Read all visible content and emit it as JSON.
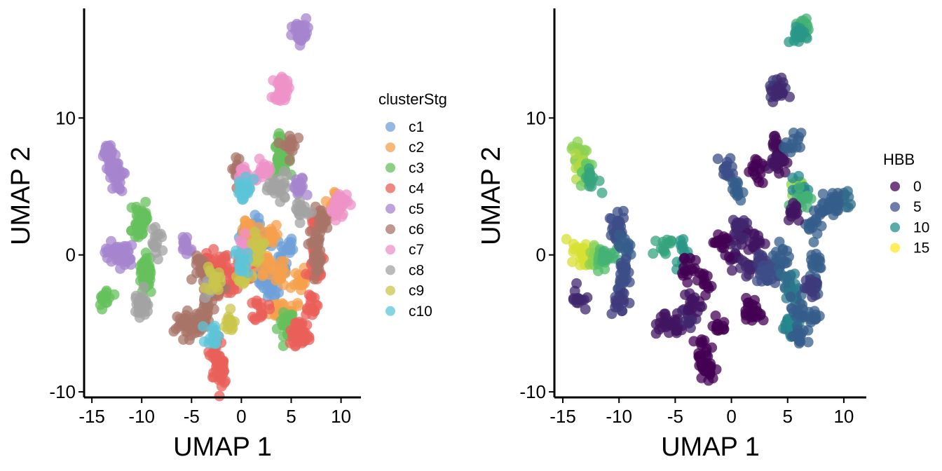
{
  "chart_data": [
    {
      "type": "scatter",
      "xlabel": "UMAP 1",
      "ylabel": "UMAP 2",
      "xlim": [
        -15.5,
        12
      ],
      "ylim": [
        -10.2,
        18
      ],
      "xticks": [
        -15,
        -10,
        -5,
        0,
        5,
        10
      ],
      "yticks": [
        -10,
        0,
        10
      ],
      "legend_title": "clusterStg",
      "legend_position": "right",
      "series": [
        {
          "name": "c1",
          "color": "#6fa0d8",
          "values": [
            [
              0.5,
              1.5
            ],
            [
              1.5,
              2.0
            ],
            [
              2.5,
              1.0
            ],
            [
              2.0,
              -1.5
            ],
            [
              3.0,
              -2.5
            ],
            [
              4.0,
              -1.0
            ],
            [
              1.0,
              -1.0
            ],
            [
              4.5,
              0.5
            ]
          ]
        },
        {
          "name": "c2",
          "color": "#f5a04c",
          "values": [
            [
              0.5,
              2.0
            ],
            [
              1.5,
              1.0
            ],
            [
              3.0,
              1.5
            ],
            [
              2.5,
              -0.5
            ],
            [
              4.0,
              -1.5
            ],
            [
              3.5,
              -4.0
            ],
            [
              5.0,
              -4.5
            ],
            [
              9.5,
              3.8
            ],
            [
              6.0,
              -2.0
            ],
            [
              1.0,
              -0.5
            ]
          ]
        },
        {
          "name": "c3",
          "color": "#66c05c",
          "values": [
            [
              4.0,
              8.0
            ],
            [
              4.2,
              7.0
            ],
            [
              3.8,
              6.5
            ],
            [
              -10.0,
              2.5
            ],
            [
              -10.3,
              1.8
            ],
            [
              -9.5,
              -0.8
            ],
            [
              -9.8,
              -1.5
            ],
            [
              -9.6,
              -2.0
            ],
            [
              4.5,
              -5.0
            ],
            [
              5.0,
              -5.5
            ],
            [
              -13.6,
              -3.2
            ],
            [
              -10.0,
              3.0
            ]
          ]
        },
        {
          "name": "c4",
          "color": "#ea6059",
          "values": [
            [
              -2.5,
              -7.0
            ],
            [
              -2.3,
              -8.0
            ],
            [
              -2.0,
              -8.5
            ],
            [
              0.0,
              -1.0
            ],
            [
              -1.0,
              -2.0
            ],
            [
              -3.5,
              -0.5
            ],
            [
              -2.5,
              -2.5
            ],
            [
              6.0,
              -5.5
            ],
            [
              6.2,
              -6.0
            ],
            [
              5.5,
              -6.0
            ],
            [
              7.5,
              0.0
            ],
            [
              7.5,
              2.5
            ],
            [
              7.5,
              -1.5
            ],
            [
              -2.0,
              -0.5
            ],
            [
              2.0,
              -4.0
            ],
            [
              7.0,
              -3.5
            ]
          ]
        },
        {
          "name": "c5",
          "color": "#a584ce",
          "values": [
            [
              -13.5,
              7.5
            ],
            [
              -13.2,
              6.5
            ],
            [
              -12.8,
              6.0
            ],
            [
              -12.5,
              5.5
            ],
            [
              -13.0,
              0.2
            ],
            [
              -12.0,
              0.0
            ],
            [
              -11.5,
              -0.2
            ],
            [
              6.2,
              16.3
            ],
            [
              5.8,
              16.0
            ],
            [
              5.8,
              4.8
            ],
            [
              -5.5,
              0.8
            ]
          ]
        },
        {
          "name": "c6",
          "color": "#a87468",
          "values": [
            [
              -6.0,
              -5.0
            ],
            [
              -5.0,
              -5.2
            ],
            [
              -3.8,
              -4.5
            ],
            [
              -3.5,
              -3.5
            ],
            [
              4.8,
              8.0
            ],
            [
              -0.3,
              6.3
            ],
            [
              8.0,
              2.5
            ],
            [
              7.5,
              1.0
            ],
            [
              7.8,
              -0.5
            ],
            [
              -4.0,
              -1.0
            ],
            [
              -2.5,
              -2.0
            ]
          ]
        },
        {
          "name": "c7",
          "color": "#ee91c8",
          "values": [
            [
              3.8,
              12.3
            ],
            [
              4.2,
              12.0
            ],
            [
              0.5,
              0.5
            ],
            [
              1.0,
              0.3
            ],
            [
              10.0,
              3.8
            ],
            [
              9.5,
              3.6
            ],
            [
              2.2,
              6.0
            ],
            [
              0.3,
              5.8
            ]
          ]
        },
        {
          "name": "c8",
          "color": "#a3a3a3",
          "values": [
            [
              -10.2,
              -3.5
            ],
            [
              -10.0,
              -3.8
            ],
            [
              -8.5,
              0.8
            ],
            [
              3.5,
              5.0
            ],
            [
              4.0,
              4.8
            ],
            [
              -3.2,
              -2.5
            ],
            [
              6.0,
              3.3
            ]
          ]
        },
        {
          "name": "c9",
          "color": "#c9c64c",
          "values": [
            [
              -1.2,
              -5.1
            ],
            [
              0.3,
              -1.5
            ],
            [
              -2.8,
              -2.0
            ],
            [
              1.5,
              0.5
            ]
          ]
        },
        {
          "name": "c10",
          "color": "#5ec4d8",
          "values": [
            [
              0.2,
              4.6
            ],
            [
              -2.8,
              -5.8
            ],
            [
              0.0,
              -0.5
            ],
            [
              0.5,
              5.0
            ]
          ]
        }
      ]
    },
    {
      "type": "scatter",
      "xlabel": "UMAP 1",
      "ylabel": "UMAP 2",
      "xlim": [
        -15.5,
        12
      ],
      "ylim": [
        -10.2,
        18
      ],
      "xticks": [
        -15,
        -10,
        -5,
        0,
        5,
        10
      ],
      "yticks": [
        -10,
        0,
        10
      ],
      "legend_title": "HBB",
      "legend_position": "right",
      "color_scale": "viridis",
      "color_range": [
        0,
        17
      ],
      "legend_values": [
        0,
        5,
        10,
        15
      ],
      "legend_colors": [
        "#440154",
        "#3b528b",
        "#21908c",
        "#fde725"
      ],
      "points": [
        {
          "x": 4.0,
          "y": 8.0,
          "v": 0.5
        },
        {
          "x": 4.2,
          "y": 7.0,
          "v": 0.5
        },
        {
          "x": 3.8,
          "y": 6.5,
          "v": 1
        },
        {
          "x": 3.8,
          "y": 12.3,
          "v": 3
        },
        {
          "x": 4.2,
          "y": 12.0,
          "v": 2
        },
        {
          "x": 6.2,
          "y": 16.3,
          "v": 11
        },
        {
          "x": 5.8,
          "y": 16.0,
          "v": 9
        },
        {
          "x": 5.5,
          "y": 8.0,
          "v": 5
        },
        {
          "x": -0.3,
          "y": 6.3,
          "v": 4
        },
        {
          "x": 0.3,
          "y": 4.6,
          "v": 5
        },
        {
          "x": 6.0,
          "y": 5.0,
          "v": 14
        },
        {
          "x": 6.3,
          "y": 4.8,
          "v": 8
        },
        {
          "x": 6.3,
          "y": 4.3,
          "v": 11
        },
        {
          "x": 10.0,
          "y": 3.8,
          "v": 6
        },
        {
          "x": 9.2,
          "y": 4.0,
          "v": 5
        },
        {
          "x": 8.0,
          "y": 3.5,
          "v": 5
        },
        {
          "x": 7.5,
          "y": 2.0,
          "v": 5
        },
        {
          "x": 7.5,
          "y": -0.5,
          "v": 5
        },
        {
          "x": 7.3,
          "y": -2.0,
          "v": 5
        },
        {
          "x": 5.5,
          "y": 3.3,
          "v": 1
        },
        {
          "x": -13.5,
          "y": 7.5,
          "v": 14
        },
        {
          "x": -13.2,
          "y": 6.5,
          "v": 15
        },
        {
          "x": -12.8,
          "y": 6.0,
          "v": 13
        },
        {
          "x": -12.5,
          "y": 5.5,
          "v": 10
        },
        {
          "x": -13.5,
          "y": 0.2,
          "v": 16
        },
        {
          "x": -13.0,
          "y": 0.0,
          "v": 16
        },
        {
          "x": -12.0,
          "y": 0.0,
          "v": 14
        },
        {
          "x": -11.5,
          "y": -0.2,
          "v": 12
        },
        {
          "x": -11.0,
          "y": 0.0,
          "v": 11
        },
        {
          "x": -13.6,
          "y": -3.2,
          "v": 2
        },
        {
          "x": -10.0,
          "y": 2.5,
          "v": 4
        },
        {
          "x": -10.3,
          "y": 1.8,
          "v": 4
        },
        {
          "x": -9.5,
          "y": 0.5,
          "v": 5
        },
        {
          "x": -9.6,
          "y": -1.0,
          "v": 4
        },
        {
          "x": -9.8,
          "y": -2.0,
          "v": 4
        },
        {
          "x": -10.0,
          "y": -3.5,
          "v": 3
        },
        {
          "x": -6.0,
          "y": 0.7,
          "v": 10
        },
        {
          "x": -4.5,
          "y": 0.3,
          "v": 9
        },
        {
          "x": -2.5,
          "y": -7.0,
          "v": 0
        },
        {
          "x": -2.3,
          "y": -8.0,
          "v": 0
        },
        {
          "x": -2.0,
          "y": -8.5,
          "v": 0
        },
        {
          "x": -6.0,
          "y": -5.0,
          "v": 1
        },
        {
          "x": -5.0,
          "y": -5.2,
          "v": 1
        },
        {
          "x": -3.8,
          "y": -4.5,
          "v": 2
        },
        {
          "x": -3.5,
          "y": -3.5,
          "v": 1
        },
        {
          "x": -4.0,
          "y": -1.0,
          "v": 0
        },
        {
          "x": -2.5,
          "y": -2.0,
          "v": 0
        },
        {
          "x": 0.0,
          "y": 0.0,
          "v": 1
        },
        {
          "x": 1.0,
          "y": 1.5,
          "v": 1
        },
        {
          "x": 2.0,
          "y": 1.0,
          "v": 1
        },
        {
          "x": 1.5,
          "y": -1.0,
          "v": 2
        },
        {
          "x": -1.0,
          "y": 1.0,
          "v": 0
        },
        {
          "x": 0.5,
          "y": 2.0,
          "v": 2
        },
        {
          "x": 2.5,
          "y": -0.5,
          "v": 3
        },
        {
          "x": 3.0,
          "y": -1.5,
          "v": 4
        },
        {
          "x": 4.0,
          "y": -1.0,
          "v": 4
        },
        {
          "x": 4.5,
          "y": 0.0,
          "v": 5
        },
        {
          "x": 5.0,
          "y": -2.0,
          "v": 6
        },
        {
          "x": 5.5,
          "y": -3.0,
          "v": 7
        },
        {
          "x": 5.0,
          "y": -5.0,
          "v": 7
        },
        {
          "x": 5.5,
          "y": -5.5,
          "v": 8
        },
        {
          "x": 6.0,
          "y": -6.0,
          "v": 5
        },
        {
          "x": 6.0,
          "y": -4.0,
          "v": 5
        },
        {
          "x": 7.0,
          "y": -4.5,
          "v": 5
        },
        {
          "x": 2.0,
          "y": -4.0,
          "v": 0
        },
        {
          "x": 1.8,
          "y": -4.2,
          "v": 0
        },
        {
          "x": -1.2,
          "y": -5.1,
          "v": 0
        },
        {
          "x": 2.2,
          "y": 6.0,
          "v": 0
        },
        {
          "x": 7.3,
          "y": -2.2,
          "v": 3
        }
      ]
    }
  ]
}
